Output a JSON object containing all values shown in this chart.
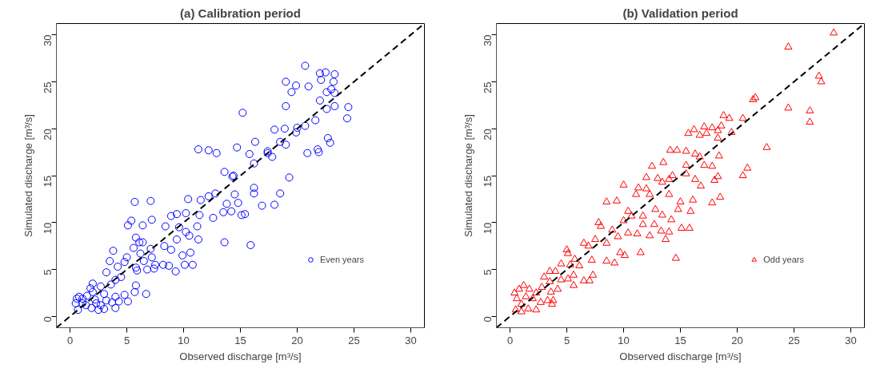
{
  "chart_data": [
    {
      "type": "scatter",
      "title": "(a) Calibration period",
      "xlabel": "Observed discharge [m³/s]",
      "ylabel": "Simulated discharge [m³/s]",
      "xlim": [
        -1.2,
        31.2
      ],
      "ylim": [
        -1.2,
        31.2
      ],
      "xticks": [
        0,
        5,
        10,
        15,
        20,
        25,
        30
      ],
      "yticks": [
        0,
        5,
        10,
        15,
        20,
        25,
        30
      ],
      "grid": false,
      "legend": "bottom right",
      "series": [
        {
          "name": "Even years",
          "color": "#0000ff",
          "marker": "circle",
          "x": [
            20.7,
            19.0,
            19.9,
            19.5,
            21.0,
            22.0,
            22.5,
            23.3,
            23.2,
            22.1,
            23.0,
            22.6,
            23.3,
            19.0,
            22.0,
            24.5,
            24.4,
            23.3,
            22.6,
            21.6,
            20.7,
            19.9,
            18.0,
            18.9,
            20.0,
            22.7,
            22.9,
            21.9,
            20.9,
            21.8,
            19.0,
            18.5,
            17.4,
            17.8,
            15.2,
            14.4,
            16.3,
            14.7,
            15.8,
            16.2,
            17.4,
            11.3,
            12.2,
            12.9,
            14.3,
            13.6,
            14.5,
            12.8,
            11.5,
            10.4,
            12.2,
            13.8,
            14.8,
            16.2,
            16.2,
            18.5,
            19.3,
            18.0,
            16.9,
            14.2,
            15.4,
            15.1,
            13.5,
            12.6,
            11.4,
            10.2,
            15.9,
            13.6,
            10.6,
            8.9,
            9.4,
            5.7,
            7.1,
            7.2,
            9.6,
            10.2,
            11.2,
            6.4,
            6.4,
            8.4,
            9.4,
            10.5,
            11.3,
            5.4,
            5.1,
            5.8,
            6.1,
            7.1,
            8.3,
            8.9,
            9.9,
            8.7,
            9.3,
            10.1,
            10.8,
            5.6,
            5.0,
            6.2,
            7.2,
            7.5,
            8.2,
            3.8,
            3.5,
            4.2,
            4.8,
            5.8,
            6.5,
            5.9,
            6.8,
            7.4,
            4.0,
            4.5,
            5.8,
            3.2,
            2.0,
            2.7,
            3.6,
            3.0,
            4.0,
            4.8,
            4.3,
            5.1,
            3.7,
            4.0,
            3.0,
            2.5,
            1.9,
            0.7,
            0.5,
            1.1,
            0.8,
            1.5,
            2.2,
            1.4,
            2.7,
            3.2,
            2.0,
            1.1,
            2.3,
            0.6,
            1.8,
            6.7,
            5.7
          ],
          "values": [
            26.7,
            25.0,
            24.6,
            23.9,
            24.5,
            25.9,
            26.0,
            25.8,
            25.0,
            25.2,
            24.2,
            23.9,
            23.8,
            22.4,
            23.0,
            22.3,
            21.1,
            22.4,
            22.1,
            20.9,
            20.3,
            19.6,
            19.9,
            20.0,
            20.1,
            19.0,
            18.5,
            17.5,
            17.4,
            17.8,
            18.3,
            18.6,
            17.6,
            17.0,
            21.7,
            15.0,
            18.6,
            18.0,
            17.3,
            16.3,
            17.4,
            17.8,
            17.7,
            17.4,
            14.9,
            15.4,
            13.0,
            13.1,
            12.4,
            12.5,
            12.8,
            12.0,
            12.1,
            13.1,
            13.7,
            13.1,
            14.8,
            11.9,
            11.8,
            11.2,
            10.9,
            10.8,
            11.1,
            10.5,
            10.8,
            11.0,
            7.6,
            7.9,
            6.8,
            10.7,
            10.9,
            12.2,
            12.3,
            10.3,
            9.5,
            9.0,
            9.6,
            7.9,
            9.7,
            9.6,
            8.2,
            8.6,
            8.2,
            10.2,
            9.7,
            8.4,
            7.9,
            7.2,
            7.5,
            7.1,
            6.5,
            5.4,
            4.8,
            5.5,
            5.5,
            7.3,
            6.3,
            6.7,
            6.3,
            5.5,
            5.5,
            7.0,
            5.9,
            5.3,
            5.8,
            5.2,
            5.9,
            4.9,
            5.0,
            5.1,
            3.9,
            4.2,
            3.3,
            4.7,
            3.5,
            3.2,
            3.4,
            2.4,
            2.1,
            2.3,
            1.6,
            1.6,
            1.5,
            0.9,
            0.8,
            0.7,
            0.9,
            0.7,
            1.4,
            1.9,
            2.1,
            2.2,
            1.8,
            1.2,
            1.2,
            1.7,
            2.6,
            1.4,
            1.4,
            1.9,
            3.0,
            2.4,
            2.6
          ]
        },
        {
          "type": "line",
          "color": "#000000",
          "line_style": "dashed",
          "x": [
            -1.2,
            31.2
          ],
          "values": [
            -1.2,
            31.2
          ]
        }
      ]
    },
    {
      "type": "scatter",
      "title": "(b) Validation period",
      "xlabel": "Observed discharge [m³/s]",
      "ylabel": "Simulated discharge [m³/s]",
      "xlim": [
        -1.2,
        31.2
      ],
      "ylim": [
        -1.2,
        31.2
      ],
      "xticks": [
        0,
        5,
        10,
        15,
        20,
        25,
        30
      ],
      "yticks": [
        0,
        5,
        10,
        15,
        20,
        25,
        30
      ],
      "grid": false,
      "legend": "bottom right",
      "series": [
        {
          "name": "Odd years",
          "color": "#ff0000",
          "marker": "triangle",
          "x": [
            28.5,
            24.5,
            27.2,
            27.4,
            24.5,
            26.4,
            26.4,
            21.4,
            21.6,
            22.6,
            20.5,
            20.9,
            18.8,
            19.3,
            20.5,
            18.3,
            19.5,
            18.6,
            17.8,
            17.1,
            16.2,
            16.7,
            17.3,
            18.3,
            15.7,
            14.1,
            14.7,
            15.5,
            16.3,
            16.7,
            18.4,
            12.5,
            13.5,
            15.5,
            17.1,
            17.8,
            14.3,
            15.5,
            16.3,
            18.0,
            18.3,
            12.0,
            13.0,
            14.0,
            12.0,
            13.4,
            10.0,
            11.3,
            12.3,
            14.0,
            15.0,
            16.1,
            16.8,
            17.8,
            18.5,
            15.9,
            14.8,
            11.1,
            8.5,
            9.4,
            10.4,
            11.7,
            12.8,
            13.4,
            14.2,
            10.0,
            10.7,
            11.7,
            12.7,
            13.3,
            14.0,
            15.1,
            15.8,
            7.8,
            8.0,
            9.0,
            9.5,
            10.4,
            11.2,
            12.3,
            13.7,
            14.6,
            7.5,
            8.5,
            6.9,
            6.5,
            5.1,
            5.0,
            5.7,
            7.2,
            8.5,
            9.2,
            10.1,
            11.5,
            9.7,
            4.0,
            4.5,
            3.5,
            5.3,
            6.1,
            7.3,
            6.5,
            7.0,
            5.6,
            3.0,
            3.5,
            4.5,
            5.1,
            5.6,
            4.2,
            3.6,
            2.8,
            2.3,
            1.7,
            1.4,
            2.0,
            2.7,
            3.3,
            3.7,
            1.0,
            0.6,
            0.4,
            0.5,
            1.0,
            1.6,
            2.3,
            0.8,
            1.2,
            3.8
          ],
          "values": [
            30.2,
            28.7,
            25.6,
            25.0,
            22.2,
            21.9,
            20.7,
            23.1,
            23.3,
            18.0,
            15.0,
            15.8,
            21.4,
            21.1,
            21.1,
            19.8,
            19.6,
            20.3,
            20.1,
            20.2,
            19.9,
            19.3,
            19.5,
            19.0,
            19.5,
            17.7,
            17.7,
            17.6,
            17.3,
            17.0,
            17.1,
            16.0,
            16.4,
            16.1,
            16.1,
            16.0,
            15.0,
            15.2,
            14.6,
            14.5,
            14.9,
            14.8,
            14.7,
            14.6,
            13.6,
            14.3,
            14.0,
            13.7,
            13.0,
            13.0,
            12.2,
            12.4,
            13.9,
            12.1,
            12.7,
            11.2,
            11.4,
            13.0,
            12.2,
            12.3,
            11.2,
            10.7,
            11.4,
            10.8,
            10.3,
            10.2,
            10.7,
            9.8,
            9.8,
            9.1,
            9.0,
            9.4,
            9.4,
            10.0,
            9.6,
            9.2,
            8.5,
            8.9,
            8.8,
            8.6,
            8.2,
            6.2,
            8.2,
            7.8,
            7.5,
            7.8,
            6.7,
            7.1,
            6.1,
            6.0,
            5.9,
            5.7,
            6.5,
            6.8,
            6.8,
            4.8,
            5.6,
            4.8,
            5.5,
            5.4,
            4.4,
            3.8,
            3.8,
            4.4,
            4.2,
            3.7,
            3.9,
            4.0,
            3.3,
            2.9,
            2.6,
            3.1,
            2.5,
            2.9,
            2.1,
            1.9,
            1.5,
            1.7,
            1.3,
            1.3,
            1.9,
            2.5,
            0.7,
            0.5,
            0.8,
            0.7,
            2.9,
            3.3,
            1.7
          ]
        },
        {
          "type": "line",
          "color": "#000000",
          "line_style": "dashed",
          "x": [
            -1.2,
            31.2
          ],
          "values": [
            -1.2,
            31.2
          ]
        }
      ]
    }
  ]
}
